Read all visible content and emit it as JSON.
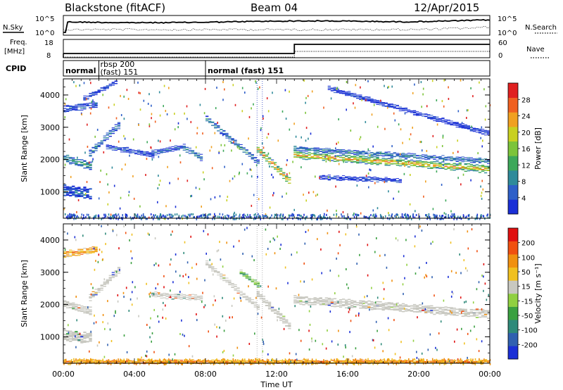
{
  "header": {
    "station": "Blackstone (fitACF)",
    "beam": "Beam 04",
    "date": "12/Apr/2015"
  },
  "left_labels": {
    "nsky": "N.Sky",
    "freq_top": "Freq.",
    "freq_bottom": "[MHz]",
    "cpid": "CPID"
  },
  "right_labels": {
    "nsearch": "N.Search",
    "nave": "Nave"
  },
  "noise_axis": {
    "left_ticks": [
      "10^5",
      "10^0"
    ],
    "right_ticks": [
      "10^5",
      "10^0"
    ]
  },
  "freq_axis": {
    "left_ticks": [
      "18",
      "8"
    ],
    "right_ticks": [
      "60",
      "0"
    ]
  },
  "cpid_segments": [
    {
      "label": "normal",
      "start_hour": 0,
      "end_hour": 2
    },
    {
      "label_top": "rbsp 200",
      "label_bottom": "(fast) 151",
      "start_hour": 2,
      "end_hour": 8
    },
    {
      "label": "normal (fast) 151",
      "start_hour": 8,
      "end_hour": 24
    }
  ],
  "chart_data": [
    {
      "type": "heatmap",
      "name": "power",
      "ylabel": "Slant Range [km]",
      "ylim": [
        180,
        4500
      ],
      "yticks": [
        "1000",
        "2000",
        "3000",
        "4000"
      ],
      "colorbar": {
        "label": "Power [dB]",
        "ticks": [
          "4",
          "8",
          "12",
          "16",
          "20",
          "24",
          "28"
        ],
        "colors": [
          "#1a2fd6",
          "#2e5fc8",
          "#2f8a9a",
          "#3da85a",
          "#7cc43a",
          "#c8d020",
          "#f0a020",
          "#f06020",
          "#e02020"
        ]
      },
      "bands": [
        {
          "t0": 0.0,
          "t1": 1.5,
          "r0": 2050,
          "r1": 1800,
          "width": 220,
          "intensity": 0.35
        },
        {
          "t0": 0.0,
          "t1": 1.6,
          "r0": 1050,
          "r1": 950,
          "width": 320,
          "intensity": 0.2
        },
        {
          "t0": 0.0,
          "t1": 1.8,
          "r0": 3550,
          "r1": 3700,
          "width": 180,
          "intensity": 0.15
        },
        {
          "t0": 1.2,
          "t1": 3.0,
          "r0": 3900,
          "r1": 4400,
          "width": 120,
          "intensity": 0.1
        },
        {
          "t0": 1.5,
          "t1": 3.2,
          "r0": 2200,
          "r1": 3100,
          "width": 180,
          "intensity": 0.25
        },
        {
          "t0": 2.5,
          "t1": 5.0,
          "r0": 2400,
          "r1": 2150,
          "width": 140,
          "intensity": 0.15
        },
        {
          "t0": 5.0,
          "t1": 6.8,
          "r0": 2200,
          "r1": 2400,
          "width": 140,
          "intensity": 0.2
        },
        {
          "t0": 6.8,
          "t1": 7.8,
          "r0": 2350,
          "r1": 2050,
          "width": 160,
          "intensity": 0.3
        },
        {
          "t0": 8.0,
          "t1": 11.0,
          "r0": 3300,
          "r1": 1900,
          "width": 160,
          "intensity": 0.3
        },
        {
          "t0": 11.0,
          "t1": 12.8,
          "r0": 2300,
          "r1": 1300,
          "width": 200,
          "intensity": 0.8
        },
        {
          "t0": 13.0,
          "t1": 24.0,
          "r0": 2150,
          "r1": 1700,
          "width": 220,
          "intensity": 0.75
        },
        {
          "t0": 13.0,
          "t1": 24.0,
          "r0": 2350,
          "r1": 1950,
          "width": 120,
          "intensity": 0.3
        },
        {
          "t0": 14.5,
          "t1": 19.0,
          "r0": 1450,
          "r1": 1350,
          "width": 120,
          "intensity": 0.1
        },
        {
          "t0": 15.0,
          "t1": 24.0,
          "r0": 4200,
          "r1": 2800,
          "width": 120,
          "intensity": 0.05
        }
      ]
    },
    {
      "type": "heatmap",
      "name": "velocity",
      "ylabel": "Slant Range [km]",
      "xlabel": "Time UT",
      "ylim": [
        180,
        4500
      ],
      "yticks": [
        "1000",
        "2000",
        "3000",
        "4000"
      ],
      "xticks": [
        "00:00",
        "04:00",
        "08:00",
        "12:00",
        "16:00",
        "20:00",
        "00:00"
      ],
      "xlim_hours": [
        0,
        24
      ],
      "colorbar": {
        "label": "Velocity [m s⁻¹]",
        "ticks": [
          "200",
          "100",
          "50",
          "15",
          "-15",
          "-50",
          "-100",
          "-200"
        ],
        "colors": [
          "#1a2fd6",
          "#3060b0",
          "#2f8a7a",
          "#3aa040",
          "#90d040",
          "#c8c8c0",
          "#f0c020",
          "#f09010",
          "#f05010",
          "#e01010"
        ]
      },
      "bands": [
        {
          "t0": 0.0,
          "t1": 1.5,
          "r0": 2050,
          "r1": 1800,
          "width": 220,
          "intensity": 0.0
        },
        {
          "t0": 0.0,
          "t1": 1.6,
          "r0": 1050,
          "r1": 950,
          "width": 320,
          "intensity": 0.0
        },
        {
          "t0": 0.0,
          "t1": 1.8,
          "r0": 3550,
          "r1": 3700,
          "width": 180,
          "intensity": 0.7
        },
        {
          "t0": 1.5,
          "t1": 3.2,
          "r0": 2200,
          "r1": 3100,
          "width": 180,
          "intensity": 0.0
        },
        {
          "t0": 5.0,
          "t1": 7.8,
          "r0": 2300,
          "r1": 2200,
          "width": 160,
          "intensity": 0.0
        },
        {
          "t0": 8.0,
          "t1": 11.0,
          "r0": 3300,
          "r1": 1900,
          "width": 160,
          "intensity": 0.0
        },
        {
          "t0": 10.0,
          "t1": 11.0,
          "r0": 3000,
          "r1": 2600,
          "width": 140,
          "intensity": 0.4
        },
        {
          "t0": 11.0,
          "t1": 12.8,
          "r0": 2300,
          "r1": 1300,
          "width": 200,
          "intensity": 0.0
        },
        {
          "t0": 13.0,
          "t1": 24.0,
          "r0": 2150,
          "r1": 1700,
          "width": 240,
          "intensity": 0.0
        },
        {
          "t0": 0.0,
          "t1": 24.0,
          "r0": 230,
          "r1": 230,
          "width": 80,
          "intensity": 0.75
        }
      ]
    }
  ]
}
